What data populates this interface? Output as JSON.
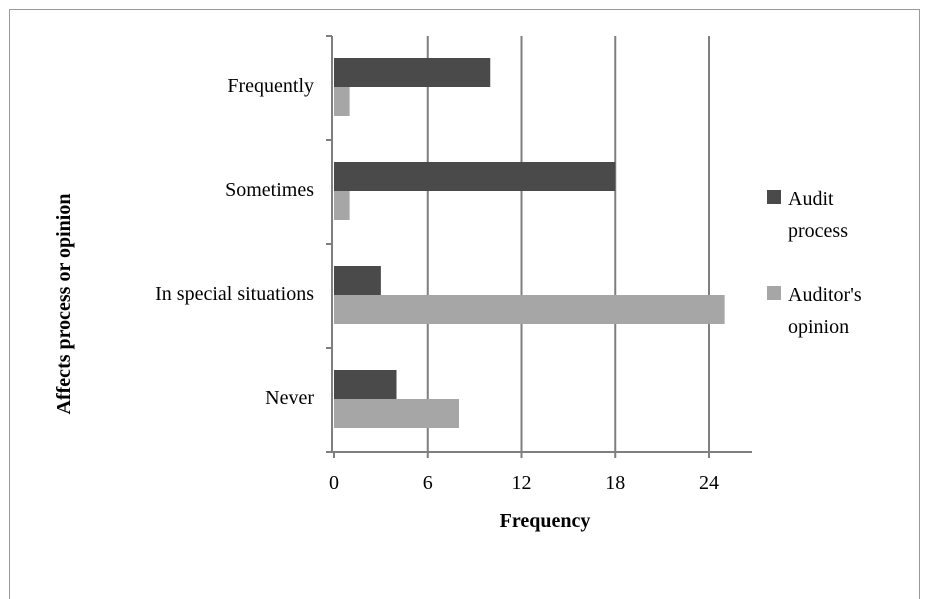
{
  "chart_data": {
    "type": "bar",
    "orientation": "horizontal",
    "categories": [
      "Frequently",
      "Sometimes",
      "In special situations",
      "Never"
    ],
    "series": [
      {
        "name": "Audit process",
        "values": [
          10,
          18,
          3,
          4
        ],
        "color": "#4a4a4a"
      },
      {
        "name": "Auditor's opinion",
        "values": [
          1,
          1,
          25,
          8
        ],
        "color": "#a6a6a6"
      }
    ],
    "xlabel": "Frequency",
    "ylabel": "Affects process or opinion",
    "xlim": [
      0,
      27
    ],
    "xticks": [
      0,
      6,
      12,
      18,
      24
    ],
    "grid": true,
    "legend": {
      "placement": "right",
      "entries": [
        {
          "lines": [
            "Audit",
            "process"
          ],
          "color": "#4a4a4a"
        },
        {
          "lines": [
            "Auditor's",
            "opinion"
          ],
          "color": "#a6a6a6"
        }
      ]
    }
  }
}
